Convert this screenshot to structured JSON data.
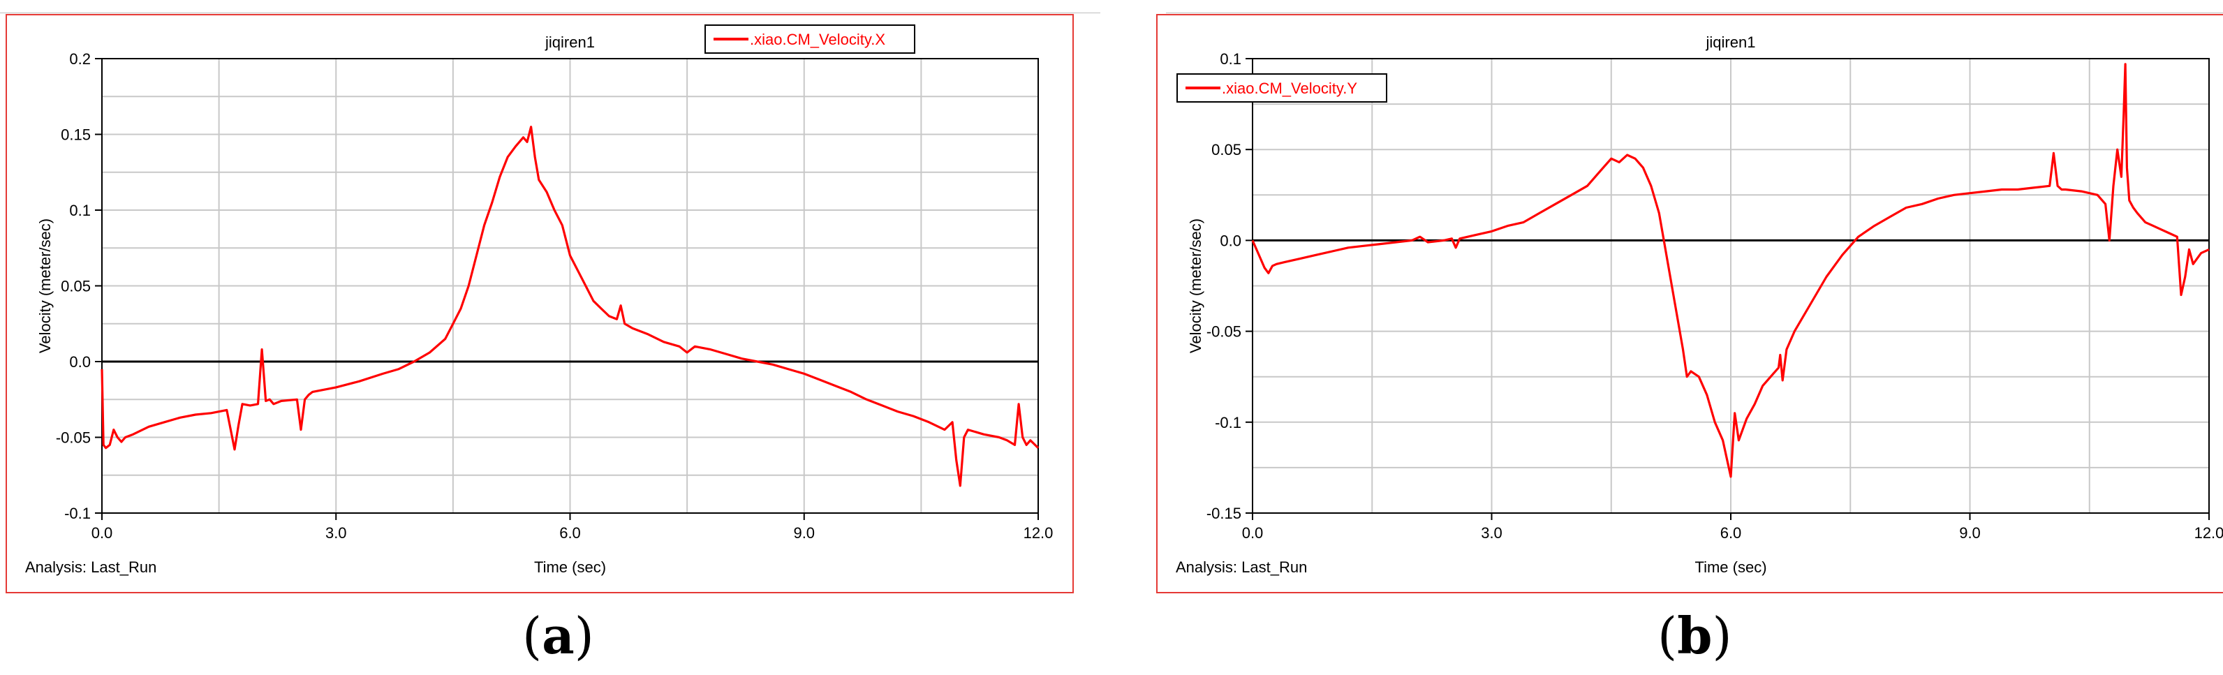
{
  "panels": [
    {
      "caption_open": "(",
      "caption_letter": "a",
      "caption_close": ")",
      "analysis_label": "Analysis:  Last_Run"
    },
    {
      "caption_open": "(",
      "caption_letter": "b",
      "caption_close": ")",
      "analysis_label": "Analysis:  Last_Run"
    }
  ],
  "colors": {
    "series": "#ff0000",
    "frame": "#e53935",
    "grid": "#c8c8c8",
    "zero": "#000000"
  },
  "chart_data": [
    {
      "type": "line",
      "title": "jiqiren1",
      "xlabel": "Time (sec)",
      "ylabel": "Velocity (meter/sec)",
      "xlim": [
        0,
        12
      ],
      "ylim": [
        -0.1,
        0.2
      ],
      "xticks": [
        0,
        3,
        6,
        9,
        12
      ],
      "xtick_labels": [
        "0.0",
        "3.0",
        "6.0",
        "9.0",
        "12.0"
      ],
      "yticks": [
        -0.1,
        -0.05,
        0,
        0.05,
        0.1,
        0.15,
        0.2
      ],
      "ytick_labels": [
        "-0.1",
        "-0.05",
        "0.0",
        "0.05",
        "0.1",
        "0.15",
        "0.2"
      ],
      "grid": true,
      "zero_line": true,
      "legend_position": "top-right",
      "series": [
        {
          "name": ".xiao.CM_Velocity.X",
          "color": "#ff0000",
          "x": [
            0.0,
            0.02,
            0.05,
            0.1,
            0.15,
            0.2,
            0.25,
            0.3,
            0.4,
            0.6,
            0.8,
            1.0,
            1.2,
            1.4,
            1.6,
            1.65,
            1.7,
            1.75,
            1.8,
            1.9,
            2.0,
            2.05,
            2.1,
            2.15,
            2.2,
            2.3,
            2.5,
            2.55,
            2.6,
            2.65,
            2.7,
            3.0,
            3.3,
            3.6,
            3.8,
            4.0,
            4.2,
            4.4,
            4.5,
            4.6,
            4.7,
            4.8,
            4.9,
            5.0,
            5.1,
            5.2,
            5.3,
            5.4,
            5.45,
            5.5,
            5.55,
            5.6,
            5.7,
            5.8,
            5.9,
            6.0,
            6.1,
            6.2,
            6.3,
            6.4,
            6.5,
            6.6,
            6.65,
            6.7,
            6.8,
            7.0,
            7.2,
            7.4,
            7.5,
            7.6,
            7.8,
            8.0,
            8.2,
            8.4,
            8.6,
            8.8,
            9.0,
            9.2,
            9.4,
            9.6,
            9.8,
            10.0,
            10.2,
            10.4,
            10.6,
            10.8,
            10.9,
            10.95,
            11.0,
            11.05,
            11.1,
            11.3,
            11.5,
            11.6,
            11.7,
            11.75,
            11.8,
            11.85,
            11.9,
            12.0
          ],
          "y": [
            -0.005,
            -0.055,
            -0.057,
            -0.055,
            -0.045,
            -0.05,
            -0.053,
            -0.05,
            -0.048,
            -0.043,
            -0.04,
            -0.037,
            -0.035,
            -0.034,
            -0.032,
            -0.045,
            -0.058,
            -0.042,
            -0.028,
            -0.029,
            -0.028,
            0.008,
            -0.026,
            -0.025,
            -0.028,
            -0.026,
            -0.025,
            -0.045,
            -0.025,
            -0.022,
            -0.02,
            -0.017,
            -0.013,
            -0.008,
            -0.005,
            0.0,
            0.006,
            0.015,
            0.025,
            0.035,
            0.05,
            0.07,
            0.09,
            0.105,
            0.122,
            0.135,
            0.142,
            0.148,
            0.145,
            0.155,
            0.135,
            0.12,
            0.112,
            0.1,
            0.09,
            0.07,
            0.06,
            0.05,
            0.04,
            0.035,
            0.03,
            0.028,
            0.037,
            0.025,
            0.022,
            0.018,
            0.013,
            0.01,
            0.006,
            0.01,
            0.008,
            0.005,
            0.002,
            0.0,
            -0.002,
            -0.005,
            -0.008,
            -0.012,
            -0.016,
            -0.02,
            -0.025,
            -0.029,
            -0.033,
            -0.036,
            -0.04,
            -0.045,
            -0.04,
            -0.065,
            -0.082,
            -0.05,
            -0.045,
            -0.048,
            -0.05,
            -0.052,
            -0.055,
            -0.028,
            -0.05,
            -0.055,
            -0.052,
            -0.057
          ]
        }
      ]
    },
    {
      "type": "line",
      "title": "jiqiren1",
      "xlabel": "Time (sec)",
      "ylabel": "Velocity (meter/sec)",
      "xlim": [
        0,
        12
      ],
      "ylim": [
        -0.15,
        0.1
      ],
      "xticks": [
        0,
        3,
        6,
        9,
        12
      ],
      "xtick_labels": [
        "0.0",
        "3.0",
        "6.0",
        "9.0",
        "12.0"
      ],
      "yticks": [
        -0.15,
        -0.1,
        -0.05,
        0,
        0.05,
        0.1
      ],
      "ytick_labels": [
        "-0.15",
        "-0.1",
        "-0.05",
        "0.0",
        "0.05",
        "0.1"
      ],
      "grid": true,
      "zero_line": true,
      "legend_position": "top-left",
      "series": [
        {
          "name": ".xiao.CM_Velocity.Y",
          "color": "#ff0000",
          "x": [
            0.0,
            0.05,
            0.1,
            0.15,
            0.2,
            0.25,
            0.3,
            0.4,
            0.6,
            0.8,
            1.0,
            1.2,
            1.4,
            1.6,
            1.8,
            2.0,
            2.1,
            2.2,
            2.4,
            2.5,
            2.55,
            2.6,
            2.8,
            3.0,
            3.2,
            3.4,
            3.6,
            3.8,
            4.0,
            4.2,
            4.4,
            4.5,
            4.6,
            4.7,
            4.8,
            4.9,
            5.0,
            5.1,
            5.2,
            5.3,
            5.4,
            5.45,
            5.5,
            5.6,
            5.7,
            5.8,
            5.9,
            5.95,
            6.0,
            6.05,
            6.1,
            6.2,
            6.3,
            6.4,
            6.5,
            6.6,
            6.62,
            6.65,
            6.7,
            6.8,
            7.0,
            7.2,
            7.4,
            7.6,
            7.8,
            8.0,
            8.2,
            8.4,
            8.6,
            8.8,
            9.0,
            9.2,
            9.4,
            9.6,
            9.8,
            10.0,
            10.05,
            10.1,
            10.15,
            10.2,
            10.4,
            10.6,
            10.7,
            10.75,
            10.8,
            10.85,
            10.9,
            10.93,
            10.95,
            10.97,
            11.0,
            11.05,
            11.1,
            11.2,
            11.3,
            11.4,
            11.5,
            11.6,
            11.65,
            11.7,
            11.75,
            11.8,
            11.85,
            11.9,
            12.0
          ],
          "y": [
            0.0,
            -0.005,
            -0.01,
            -0.015,
            -0.018,
            -0.014,
            -0.013,
            -0.012,
            -0.01,
            -0.008,
            -0.006,
            -0.004,
            -0.003,
            -0.002,
            -0.001,
            0.0,
            0.002,
            -0.001,
            0.0,
            0.001,
            -0.004,
            0.001,
            0.003,
            0.005,
            0.008,
            0.01,
            0.015,
            0.02,
            0.025,
            0.03,
            0.04,
            0.045,
            0.043,
            0.047,
            0.045,
            0.04,
            0.03,
            0.015,
            -0.01,
            -0.035,
            -0.06,
            -0.075,
            -0.072,
            -0.075,
            -0.085,
            -0.1,
            -0.11,
            -0.12,
            -0.13,
            -0.095,
            -0.11,
            -0.098,
            -0.09,
            -0.08,
            -0.075,
            -0.07,
            -0.063,
            -0.077,
            -0.06,
            -0.05,
            -0.035,
            -0.02,
            -0.008,
            0.002,
            0.008,
            0.013,
            0.018,
            0.02,
            0.023,
            0.025,
            0.026,
            0.027,
            0.028,
            0.028,
            0.029,
            0.03,
            0.048,
            0.03,
            0.028,
            0.028,
            0.027,
            0.025,
            0.02,
            0.0,
            0.03,
            0.05,
            0.035,
            0.07,
            0.097,
            0.04,
            0.022,
            0.018,
            0.015,
            0.01,
            0.008,
            0.006,
            0.004,
            0.002,
            -0.03,
            -0.02,
            -0.005,
            -0.013,
            -0.01,
            -0.007,
            -0.005
          ]
        }
      ]
    }
  ]
}
